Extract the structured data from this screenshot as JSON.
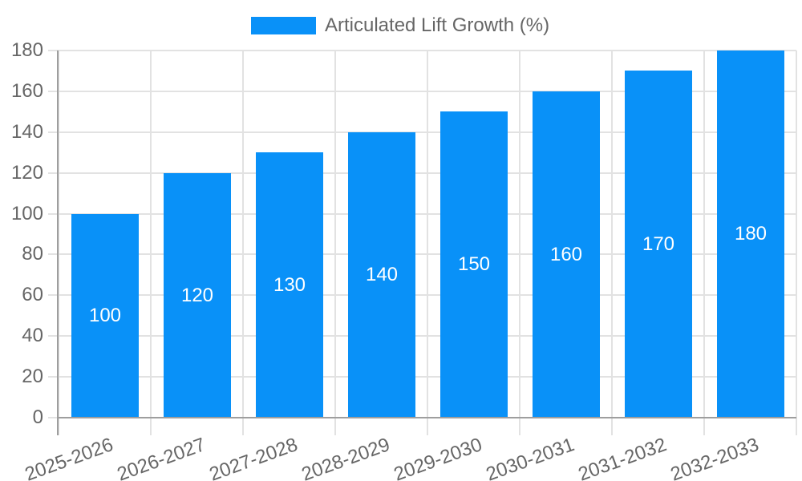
{
  "chart_data": {
    "type": "bar",
    "title": "",
    "legend": "Articulated Lift Growth (%)",
    "legend_position": "top-center",
    "categories": [
      "2025-2026",
      "2026-2027",
      "2027-2028",
      "2028-2029",
      "2029-2030",
      "2030-2031",
      "2031-2032",
      "2032-2033"
    ],
    "values": [
      100,
      120,
      130,
      140,
      150,
      160,
      170,
      180
    ],
    "bar_value_labels": [
      "100",
      "120",
      "130",
      "140",
      "150",
      "160",
      "170",
      "180"
    ],
    "xlabel": "",
    "ylabel": "",
    "ylim": [
      0,
      180
    ],
    "ytick_step": 20,
    "yticks": [
      0,
      20,
      40,
      60,
      80,
      100,
      120,
      140,
      160,
      180
    ],
    "grid": true,
    "x_label_rotation_deg": -20,
    "bar_labels_inside": true,
    "colors": {
      "bar": "#0991f8",
      "bar_label": "#ffffff",
      "axis_text": "#666666",
      "gridline": "#e2e2e2",
      "axis_line": "#9e9e9e",
      "background": "#ffffff"
    }
  }
}
